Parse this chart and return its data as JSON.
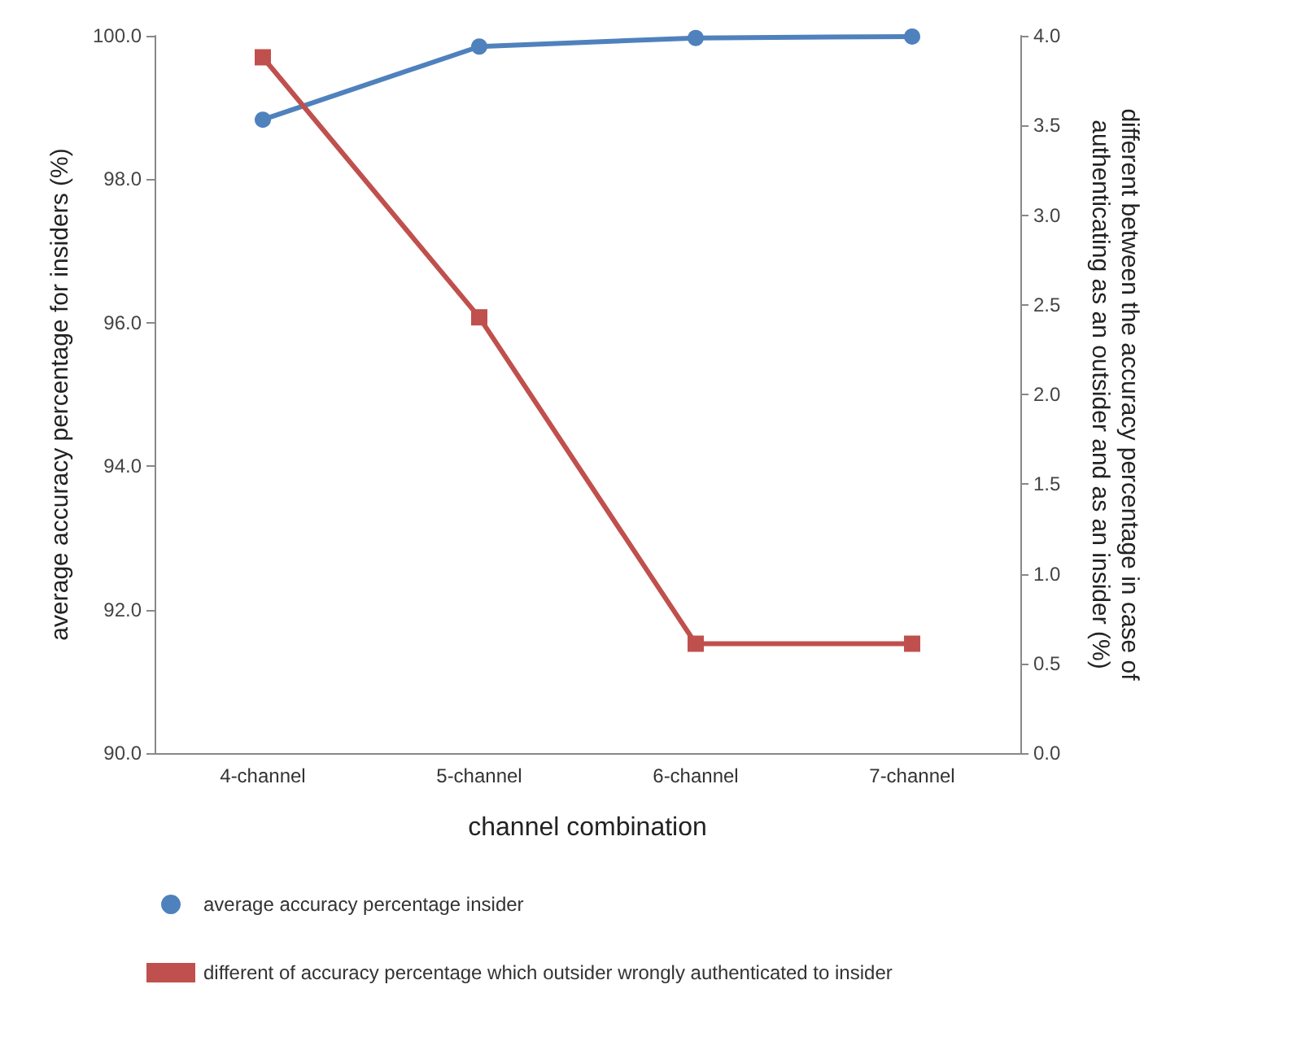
{
  "chart_data": {
    "type": "line",
    "xlabel": "channel combination",
    "ylabel": "average accuracy percentage for insiders (%)",
    "y2label": "different between the accuracy percentage in case of\nauthenticating as an outsider and as an insider (%)",
    "categories": [
      "4-channel",
      "5-channel",
      "6-channel",
      "7-channel"
    ],
    "series": [
      {
        "name": "average accuracy percentage insider",
        "color": "#4f81bd",
        "values": [
          98.83,
          99.85,
          99.97,
          99.99
        ],
        "marker": "circle"
      },
      {
        "name": "different of accuracy percentage which outsider wrongly authenticated to insider",
        "color": "#c0504d",
        "values": [
          3.88,
          2.43,
          0.61,
          0.61
        ],
        "axis": "y2",
        "marker": "square"
      }
    ],
    "ylim": [
      90,
      100
    ],
    "yticks": [
      {
        "value": 90,
        "label": "90.0"
      },
      {
        "value": 92,
        "label": "92.0"
      },
      {
        "value": 94,
        "label": "94.0"
      },
      {
        "value": 96,
        "label": "96.0"
      },
      {
        "value": 98,
        "label": "98.0"
      },
      {
        "value": 100,
        "label": "100.0"
      }
    ],
    "y2lim": [
      0,
      4
    ],
    "y2ticks": [
      {
        "value": 0,
        "label": "0.0"
      },
      {
        "value": 0.5,
        "label": "0.5"
      },
      {
        "value": 1,
        "label": "1.0"
      },
      {
        "value": 1.5,
        "label": "1.5"
      },
      {
        "value": 2,
        "label": "2.0"
      },
      {
        "value": 2.5,
        "label": "2.5"
      },
      {
        "value": 3,
        "label": "3.0"
      },
      {
        "value": 3.5,
        "label": "3.5"
      },
      {
        "value": 4,
        "label": "4.0"
      }
    ],
    "grid": false,
    "legend": "bottom",
    "line_style": "solid"
  }
}
